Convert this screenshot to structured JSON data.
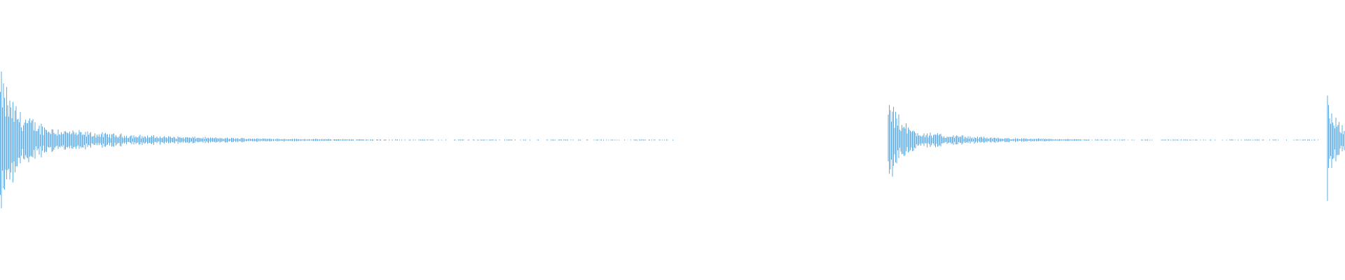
{
  "chart_data": {
    "type": "waveform",
    "title": "",
    "xlabel": "",
    "ylabel": "",
    "color": "#5dade2",
    "background": "#ffffff",
    "grid": false,
    "amplitude_range": [
      -1,
      1
    ],
    "bursts": [
      {
        "onset": 0.0,
        "peak_amplitude": 0.48,
        "decay": 0.085,
        "end": 0.5
      },
      {
        "onset": 0.66,
        "peak_amplitude": 0.36,
        "decay": 0.05,
        "end": 0.98
      },
      {
        "onset": 0.986,
        "peak_amplitude": 0.47,
        "decay": 0.03,
        "end": 1.0
      }
    ]
  }
}
